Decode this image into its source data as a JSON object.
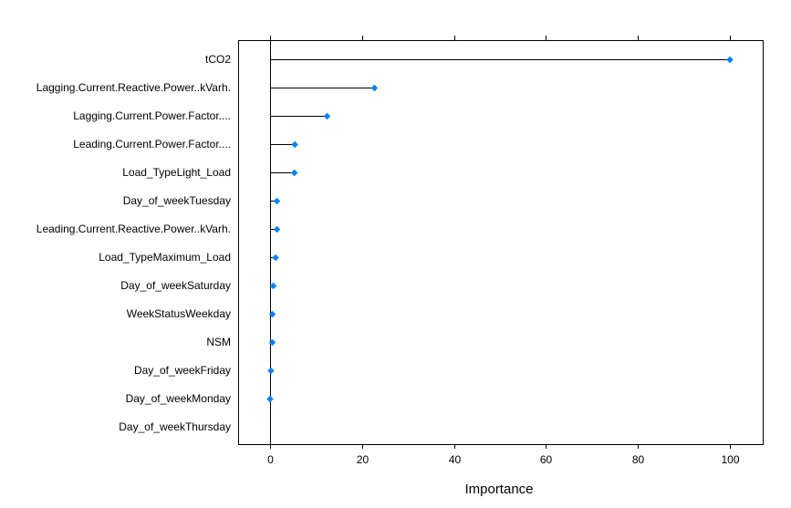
{
  "chart_data": {
    "type": "lollipop",
    "title": "",
    "xlabel": "Importance",
    "ylabel": "",
    "xlim": [
      -7,
      107
    ],
    "xticks": [
      0,
      20,
      40,
      60,
      80,
      100
    ],
    "xtick_labels": [
      "0",
      "20",
      "40",
      "60",
      "80",
      "100"
    ],
    "baseline": 0,
    "grid": false,
    "legend": "none",
    "categories": [
      "tCO2",
      "Lagging.Current.Reactive.Power..kVarh.",
      "Lagging.Current.Power.Factor....",
      "Leading.Current.Power.Factor....",
      "Load_TypeLight_Load",
      "Day_of_weekTuesday",
      "Leading.Current.Reactive.Power..kVarh.",
      "Load_TypeMaximum_Load",
      "Day_of_weekSaturday",
      "WeekStatusWeekday",
      "NSM",
      "Day_of_weekFriday",
      "Day_of_weekMonday",
      "Day_of_weekThursday"
    ],
    "values": [
      100,
      22.7,
      12.4,
      5.4,
      5.3,
      1.5,
      1.5,
      1.2,
      0.7,
      0.5,
      0.5,
      0.2,
      0.0,
      null
    ],
    "colors": {
      "point": "#0080ff",
      "stem": "#000000",
      "frame": "#000000"
    }
  }
}
